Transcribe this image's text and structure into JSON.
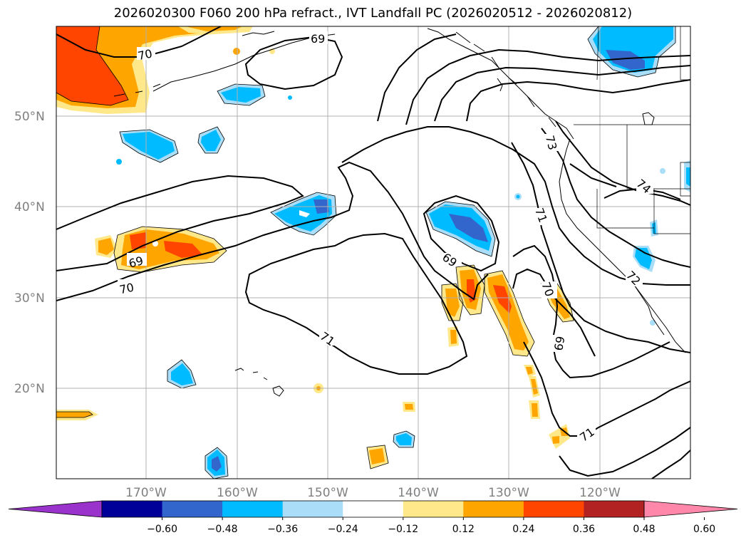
{
  "title": "2026020300 F060 200 hPa refract., IVT Landfall PC (2026020512 - 2026020812)",
  "map": {
    "lat_labels": [
      "50°N",
      "40°N",
      "30°N",
      "20°N"
    ],
    "lon_labels": [
      "170°W",
      "160°W",
      "150°W",
      "140°W",
      "130°W",
      "120°W"
    ],
    "contour_labels": [
      "70",
      "69",
      "69",
      "70",
      "71",
      "69",
      "73",
      "74",
      "71",
      "70",
      "69",
      "72",
      "71"
    ]
  },
  "colorbar": {
    "colors": [
      "#9933cc",
      "#000099",
      "#3366cc",
      "#00bbff",
      "#aaddf7",
      "#ffffff",
      "#ffe88a",
      "#ffa500",
      "#ff4500",
      "#b22222",
      "#ff88aa"
    ],
    "tick_labels": [
      "−0.60",
      "−0.48",
      "−0.36",
      "−0.24",
      "−0.12",
      "0.12",
      "0.24",
      "0.36",
      "0.48",
      "0.60"
    ]
  },
  "fill_colors": {
    "light_yellow": "#ffe88a",
    "orange": "#ffa500",
    "red_orange": "#ff4500",
    "dark_red": "#b22222",
    "light_blue": "#aaddf7",
    "cyan": "#00bbff",
    "blue": "#3366cc"
  }
}
